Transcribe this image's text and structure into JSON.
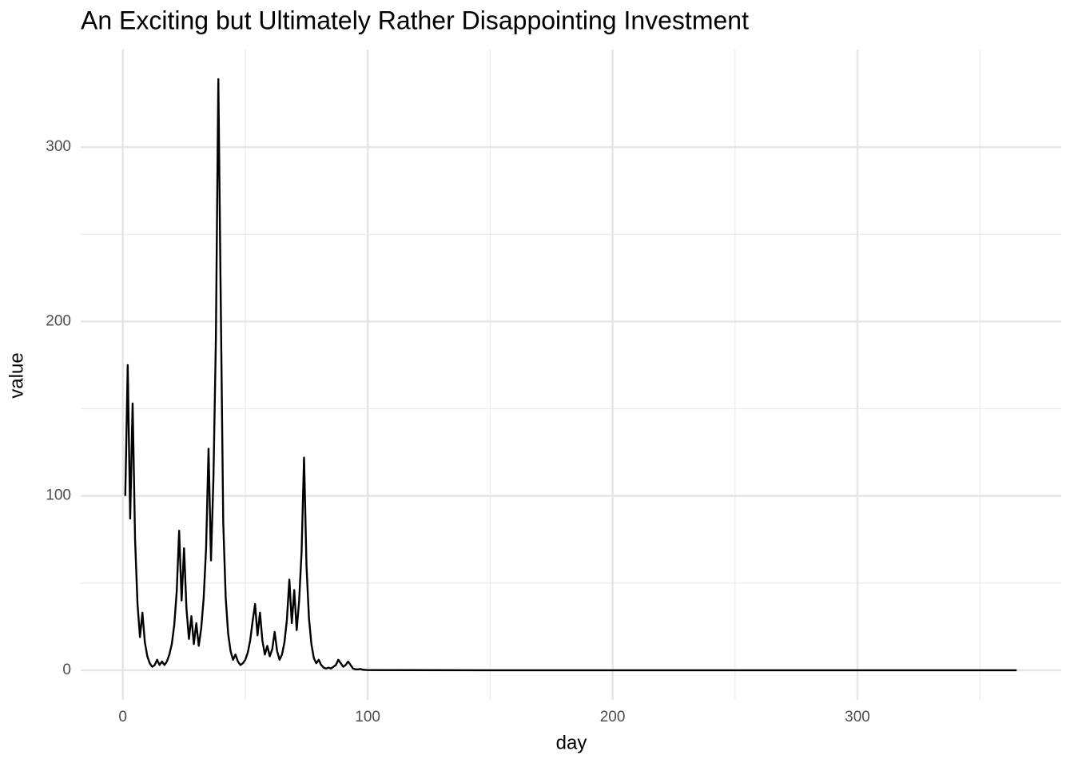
{
  "chart_data": {
    "type": "line",
    "title": "An Exciting but Ultimately Rather Disappointing Investment",
    "x_label": "day",
    "y_label": "value",
    "x": [
      1,
      2,
      3,
      4,
      5,
      6,
      7,
      8,
      9,
      10,
      11,
      12,
      13,
      14,
      15,
      16,
      17,
      18,
      19,
      20,
      21,
      22,
      23,
      24,
      25,
      26,
      27,
      28,
      29,
      30,
      31,
      32,
      33,
      34,
      35,
      36,
      37,
      38,
      39,
      40,
      41,
      42,
      43,
      44,
      45,
      46,
      47,
      48,
      49,
      50,
      51,
      52,
      53,
      54,
      55,
      56,
      57,
      58,
      59,
      60,
      61,
      62,
      63,
      64,
      65,
      66,
      67,
      68,
      69,
      70,
      71,
      72,
      73,
      74,
      75,
      76,
      77,
      78,
      79,
      80,
      81,
      82,
      83,
      84,
      85,
      86,
      87,
      88,
      89,
      90,
      91,
      92,
      93,
      94,
      95,
      96,
      97,
      98,
      99,
      100,
      150,
      200,
      250,
      300,
      365
    ],
    "values": [
      100,
      175,
      87,
      153,
      75,
      38,
      19,
      33,
      16,
      8,
      4,
      2,
      3,
      6,
      3,
      5,
      3,
      5,
      9,
      15,
      26,
      45,
      80,
      40,
      70,
      35,
      18,
      31,
      15,
      27,
      14,
      24,
      41,
      70,
      127,
      63,
      110,
      190,
      339,
      210,
      85,
      42,
      21,
      11,
      6,
      9,
      5,
      3,
      4,
      6,
      10,
      17,
      28,
      38,
      20,
      33,
      17,
      9,
      14,
      8,
      12,
      22,
      11,
      6,
      9,
      16,
      29,
      52,
      27,
      46,
      23,
      40,
      68,
      122,
      60,
      30,
      15,
      7,
      4,
      6,
      3,
      1.5,
      1,
      1.5,
      1,
      2,
      3,
      6,
      4,
      2,
      3,
      5,
      3,
      1,
      0.5,
      0.5,
      0.7,
      0.3,
      0.2,
      0.1,
      0,
      0,
      0,
      0,
      0
    ],
    "color": "#000000",
    "xlim": [
      -17.2,
      383.2
    ],
    "ylim": [
      -17,
      356
    ],
    "xticks": [
      0,
      100,
      200,
      300
    ],
    "yticks": [
      0,
      100,
      200,
      300
    ],
    "xminorticks": [
      50,
      150,
      250,
      350
    ],
    "yminorticks": [
      50,
      150,
      250
    ],
    "grid": true
  }
}
